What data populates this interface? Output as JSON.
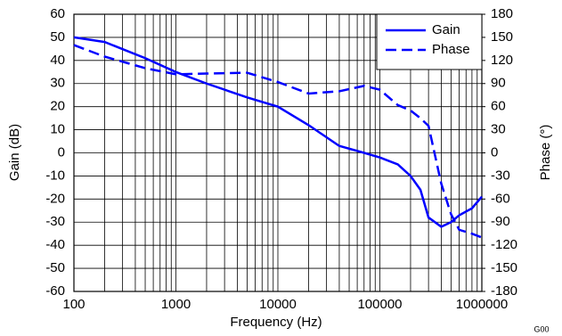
{
  "chart_data": {
    "type": "line",
    "xlabel": "Frequency (Hz)",
    "ylabel": "Gain (dB)",
    "y2label": "Phase (°)",
    "figure_id": "G00",
    "x": [
      100,
      200,
      500,
      1000,
      2000,
      5000,
      10000,
      20000,
      40000,
      70000,
      100000,
      150000,
      200000,
      250000,
      300000,
      400000,
      500000,
      600000,
      800000,
      1000000
    ],
    "series": [
      {
        "name": "Gain",
        "color": "#0000ff",
        "linestyle": "solid",
        "values": [
          50,
          48,
          41,
          35,
          30,
          24,
          20,
          12,
          3,
          0,
          -2,
          -5,
          -10,
          -16,
          -28,
          -32,
          -30,
          -27,
          -24,
          -19
        ]
      },
      {
        "name": "Phase",
        "color": "#0000ff",
        "linestyle": "dashed",
        "axis": "y2",
        "values": [
          140,
          125,
          110,
          102,
          103,
          104,
          92,
          77,
          80,
          87,
          82,
          62,
          55,
          45,
          35,
          -40,
          -80,
          -100,
          -105,
          -110
        ]
      }
    ],
    "xlog": true,
    "xlim": [
      100,
      1000000
    ],
    "xticks": [
      100,
      1000,
      10000,
      100000,
      1000000
    ],
    "ylim": [
      -60,
      60
    ],
    "yticks": [
      -60,
      -50,
      -40,
      -30,
      -20,
      -10,
      0,
      10,
      20,
      30,
      40,
      50,
      60
    ],
    "y2lim": [
      -180,
      180
    ],
    "y2ticks": [
      -180,
      -150,
      -120,
      -90,
      -60,
      -30,
      0,
      30,
      60,
      90,
      120,
      150,
      180
    ],
    "grid": true,
    "legend": "upper right"
  }
}
